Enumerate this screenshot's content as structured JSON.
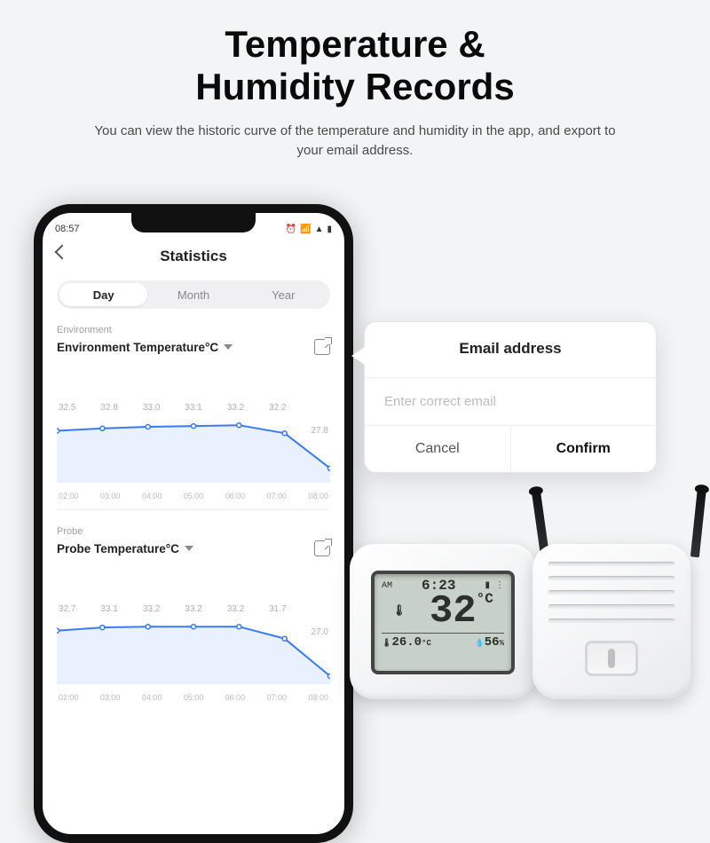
{
  "headline_line1": "Temperature &",
  "headline_line2": "Humidity Records",
  "subhead": "You can view the historic curve of the temperature and  humidity in the app, and export to your email address.",
  "phone": {
    "status_time": "08:57",
    "screen_title": "Statistics",
    "tabs": {
      "day": "Day",
      "month": "Month",
      "year": "Year"
    },
    "section1": {
      "group_label": "Environment",
      "metric": "Environment Temperature°C",
      "x_labels": [
        "02:00",
        "03:00",
        "04:00",
        "05:00",
        "06:00",
        "07:00",
        "08:00"
      ],
      "values": [
        32.5,
        32.8,
        33.0,
        33.1,
        33.2,
        32.2,
        27.8
      ],
      "line_color": "#3a7af5",
      "fill_color": "#e9f1fe",
      "ylim": [
        26,
        34
      ]
    },
    "section2": {
      "group_label": "Probe",
      "metric": "Probe Temperature°C",
      "x_labels": [
        "02:00",
        "03:00",
        "04:00",
        "05:00",
        "06:00",
        "07:00",
        "08:00"
      ],
      "values": [
        32.7,
        33.1,
        33.2,
        33.2,
        33.2,
        31.7,
        27.0
      ],
      "line_color": "#3a7af5",
      "fill_color": "#e9f1fe",
      "ylim": [
        26,
        34
      ]
    }
  },
  "popup": {
    "title": "Email address",
    "placeholder": "Enter correct email",
    "cancel": "Cancel",
    "confirm": "Confirm"
  },
  "device_lcd": {
    "am": "AM",
    "clock": "6:23",
    "temp": "32",
    "temp_unit": "°C",
    "sub_temp": "26.0",
    "sub_temp_unit": "°C",
    "humidity": "56",
    "humidity_unit": "%"
  },
  "colors": {
    "background": "#f3f4f5",
    "text_primary": "#0a0a0a",
    "text_secondary": "#4a4a4a",
    "chart_line": "#3a7af5"
  }
}
